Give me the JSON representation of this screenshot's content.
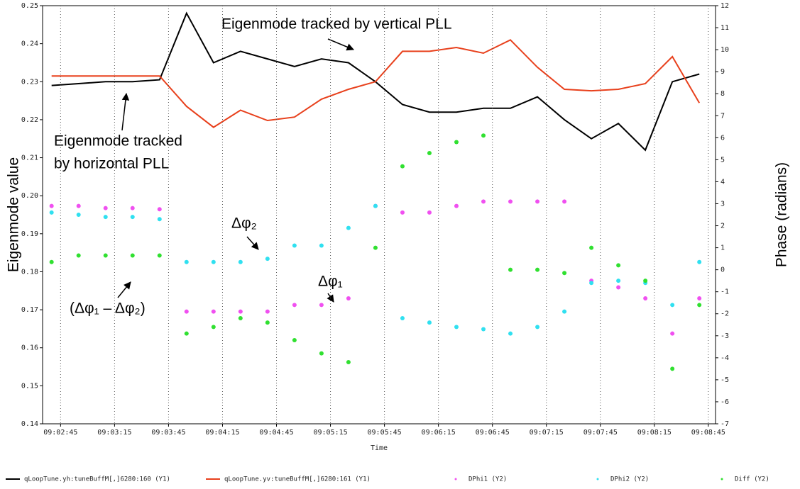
{
  "chart_data": {
    "type": "line",
    "xlabel": "Time",
    "ylabel": "Eigenmode value",
    "y2label": "Phase (radians)",
    "xlim": [
      "09:02:35",
      "09:08:49"
    ],
    "xticks": [
      "09:02:45",
      "09:03:15",
      "09:03:45",
      "09:04:15",
      "09:04:45",
      "09:05:15",
      "09:05:45",
      "09:06:15",
      "09:06:45",
      "09:07:15",
      "09:07:45",
      "09:08:15",
      "09:08:45"
    ],
    "ylim": [
      0.14,
      0.25
    ],
    "yticks": [
      0.14,
      0.15,
      0.16,
      0.17,
      0.18,
      0.19,
      {
        "value": 0.2,
        "label": "0.20"
      },
      0.21,
      0.22,
      0.23,
      0.24,
      0.25
    ],
    "y2lim": [
      -7,
      12
    ],
    "y2ticks": [
      -7,
      -6,
      -5,
      -4,
      -3,
      -2,
      -1,
      0,
      1,
      2,
      3,
      4,
      5,
      6,
      7,
      8,
      9,
      10,
      11,
      12
    ],
    "grid": "x",
    "legend": "bottom",
    "x": [
      "09:02:40",
      "09:02:55",
      "09:03:10",
      "09:03:25",
      "09:03:40",
      "09:03:55",
      "09:04:10",
      "09:04:25",
      "09:04:40",
      "09:04:55",
      "09:05:10",
      "09:05:25",
      "09:05:40",
      "09:05:55",
      "09:06:10",
      "09:06:25",
      "09:06:40",
      "09:06:55",
      "09:07:10",
      "09:07:25",
      "09:07:40",
      "09:07:55",
      "09:08:10",
      "09:08:25",
      "09:08:40"
    ],
    "series": [
      {
        "name": "qLoopTune.yh:tuneBuffM[,]6280:160 (Y1)",
        "color": "#000000",
        "kind": "line",
        "values": [
          0.229,
          0.2295,
          0.23,
          0.23,
          0.2305,
          0.248,
          0.235,
          0.238,
          0.236,
          0.234,
          0.236,
          0.235,
          0.23,
          0.224,
          0.222,
          0.222,
          0.223,
          0.223,
          0.226,
          0.22,
          0.215,
          0.219,
          0.212,
          0.23,
          0.232
        ]
      },
      {
        "name": "qLoopTune.yv:tuneBuffM[,]6280:161 (Y1)",
        "color": "#e8401c",
        "kind": "line",
        "values": [
          0.2315,
          0.2315,
          0.2315,
          0.2315,
          0.2315,
          0.2235,
          0.218,
          0.2225,
          0.2198,
          0.2207,
          0.2254,
          0.228,
          0.23,
          0.238,
          0.238,
          0.239,
          0.2375,
          0.241,
          0.2338,
          0.228,
          0.2276,
          0.228,
          0.2295,
          0.2366,
          0.2244
        ]
      },
      {
        "name": "DPhi1 (Y2)",
        "color": "#f050f0",
        "kind": "scatter",
        "axis": "y2",
        "values": [
          2.9,
          2.9,
          2.8,
          2.8,
          2.75,
          -1.9,
          -1.9,
          -1.9,
          -1.9,
          -1.6,
          -1.6,
          -1.3,
          2.9,
          2.6,
          2.6,
          2.9,
          3.1,
          3.1,
          3.1,
          3.1,
          -0.5,
          -0.8,
          -1.3,
          -2.9,
          -1.3
        ]
      },
      {
        "name": "DPhi2 (Y2)",
        "color": "#30e0f0",
        "kind": "scatter",
        "axis": "y2",
        "values": [
          2.6,
          2.5,
          2.4,
          2.4,
          2.3,
          0.35,
          0.35,
          0.35,
          0.5,
          1.1,
          1.1,
          1.9,
          2.9,
          -2.2,
          -2.4,
          -2.6,
          -2.7,
          -2.9,
          -2.6,
          -1.9,
          -0.6,
          -0.5,
          -0.6,
          -1.6,
          0.35
        ]
      },
      {
        "name": "Diff (Y2)",
        "color": "#30e030",
        "kind": "scatter",
        "axis": "y2",
        "values": [
          0.35,
          0.65,
          0.65,
          0.65,
          0.65,
          -2.9,
          -2.6,
          -2.2,
          -2.4,
          -3.2,
          -3.8,
          -4.2,
          1.0,
          4.7,
          5.3,
          5.8,
          6.1,
          0.0,
          0.0,
          -0.15,
          1.0,
          0.2,
          -0.5,
          -4.5,
          -1.6
        ]
      }
    ],
    "annotations": [
      "Eigenmode tracked by vertical PLL",
      "Eigenmode tracked",
      "by horizontal PLL",
      "Δφ₂",
      "Δφ₁",
      "(Δφ₁ – Δφ₂)"
    ]
  }
}
